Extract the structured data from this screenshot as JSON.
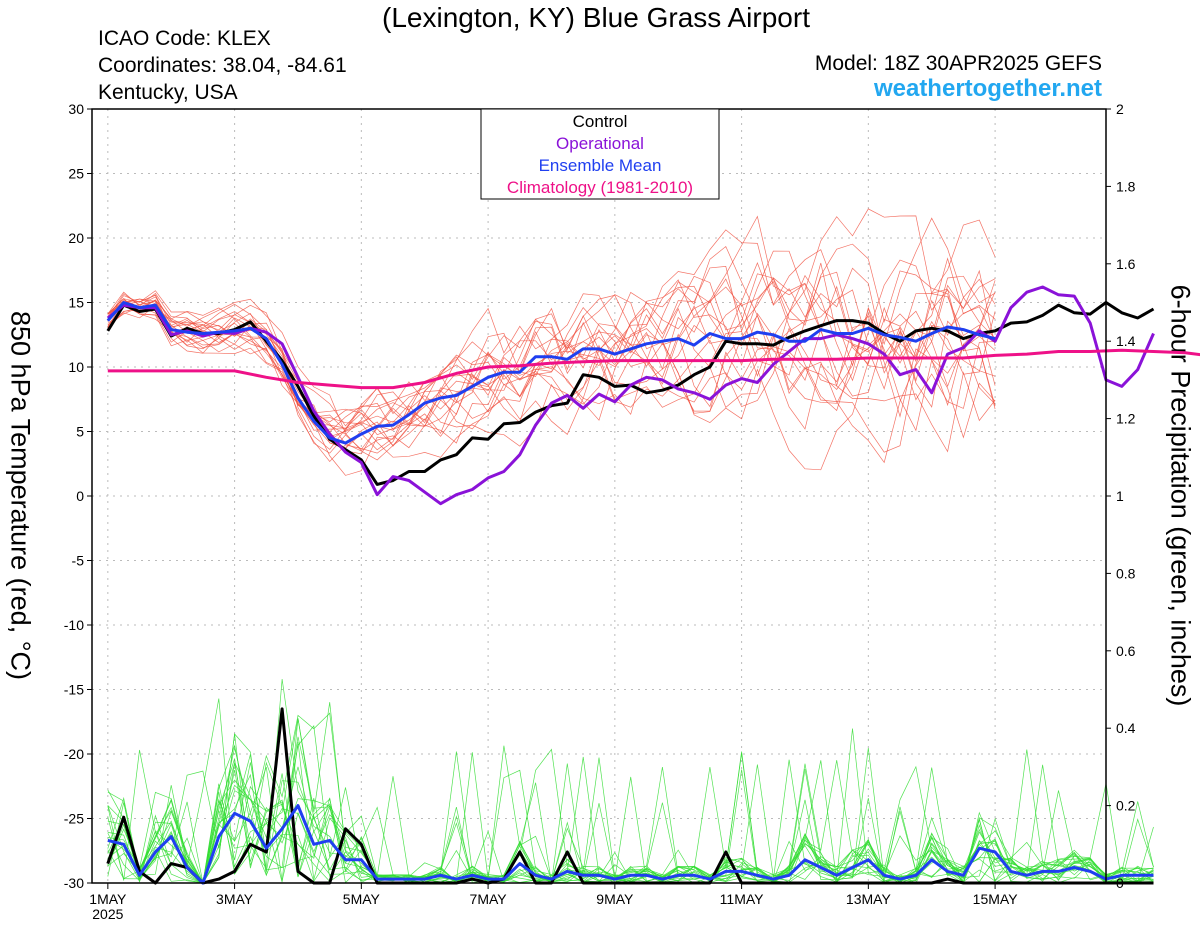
{
  "header": {
    "title": "(Lexington, KY) Blue Grass Airport",
    "icao": "ICAO Code: KLEX",
    "coords": "Coordinates: 38.04, -84.61",
    "region": "Kentucky, USA",
    "model": "Model: 18Z 30APR2025 GEFS",
    "site": "weathertogether.net"
  },
  "colors": {
    "control": "#000000",
    "operational": "#8a12d8",
    "mean": "#1f3ff0",
    "climatology": "#ee1188",
    "temp_members": "#f05040",
    "precip_members": "#33dd33"
  },
  "chart_data": {
    "type": "line",
    "ylabel_left": "850 hPa Temperature (red, °C)",
    "ylabel_right": "6-hour Precipitation (green, inches)",
    "x_ticks": [
      "1MAY",
      "3MAY",
      "5MAY",
      "7MAY",
      "9MAY",
      "11MAY",
      "13MAY",
      "15MAY"
    ],
    "x_year": "2025",
    "x_range_days": [
      0.75,
      16.75
    ],
    "ylim_left": [
      -30,
      30
    ],
    "yticks_left": [
      30,
      25,
      20,
      15,
      10,
      5,
      0,
      -5,
      -10,
      -15,
      -20,
      -25,
      -30
    ],
    "ylim_right": [
      0,
      2
    ],
    "yticks_right": [
      "2",
      "1.8",
      "1.6",
      "1.4",
      "1.2",
      "1",
      "0.8",
      "0.6",
      "0.4",
      "0.2",
      "0"
    ],
    "grid": true,
    "legend_position": "top-center",
    "legend": [
      "Control",
      "Operational",
      "Ensemble Mean",
      "Climatology (1981-2010)"
    ],
    "time_step_days": 0.25,
    "series": [
      {
        "name": "Control",
        "kind": "temperature",
        "values": [
          12.8,
          14.8,
          14.3,
          14.5,
          12.4,
          13.0,
          12.6,
          12.6,
          12.9,
          13.5,
          12.0,
          10.5,
          8.5,
          6.2,
          4.4,
          3.6,
          2.8,
          0.9,
          1.2,
          1.9,
          1.9,
          2.8,
          3.2,
          4.5,
          4.4,
          5.6,
          5.7,
          6.5,
          7.0,
          7.2,
          9.4,
          9.2,
          8.5,
          8.6,
          8.0,
          8.2,
          8.6,
          9.4,
          10.0,
          12.0,
          11.8,
          11.8,
          11.7,
          12.3,
          12.8,
          13.2,
          13.6,
          13.6,
          13.4,
          12.6,
          12.0,
          12.8,
          13.0,
          12.8,
          12.2,
          12.6,
          12.8,
          13.4,
          13.5,
          14.0,
          14.8,
          14.2,
          14.1,
          15.0,
          14.2,
          13.8,
          14.5
        ]
      },
      {
        "name": "Operational",
        "kind": "temperature",
        "values": [
          13.8,
          14.8,
          14.6,
          14.6,
          12.5,
          12.8,
          12.4,
          12.7,
          12.6,
          13.0,
          12.7,
          11.8,
          9.2,
          6.6,
          4.8,
          3.4,
          2.6,
          0.1,
          1.5,
          1.2,
          0.3,
          -0.6,
          0.1,
          0.5,
          1.4,
          1.9,
          3.2,
          5.5,
          7.2,
          7.8,
          6.8,
          7.9,
          7.3,
          8.6,
          9.2,
          9.0,
          8.3,
          8.0,
          7.5,
          8.6,
          9.1,
          8.8,
          10.2,
          11.2,
          12.2,
          12.2,
          12.5,
          12.2,
          11.8,
          11.0,
          9.4,
          9.8,
          8.0,
          11.0,
          11.5,
          12.8,
          12.0,
          14.6,
          15.8,
          16.2,
          15.6,
          15.5,
          13.4,
          9.0,
          8.5,
          9.8,
          12.6
        ]
      },
      {
        "name": "Ensemble Mean",
        "kind": "temperature",
        "values": [
          13.6,
          15.0,
          14.6,
          14.8,
          12.9,
          12.7,
          12.6,
          12.7,
          12.8,
          13.0,
          12.2,
          10.2,
          7.6,
          5.8,
          4.5,
          4.1,
          4.8,
          5.4,
          5.5,
          6.3,
          7.2,
          7.6,
          7.8,
          8.5,
          9.2,
          9.6,
          9.6,
          10.8,
          10.8,
          10.6,
          11.4,
          11.4,
          11.0,
          11.4,
          11.8,
          12.0,
          12.2,
          11.7,
          12.6,
          12.2,
          12.2,
          12.7,
          12.5,
          12.0,
          12.0,
          12.9,
          12.6,
          12.6,
          13.0,
          12.5,
          12.3,
          12.0,
          12.6,
          13.1,
          12.9,
          12.5,
          12.2
        ]
      },
      {
        "name": "Climatology (1981-2010)",
        "kind": "temperature",
        "values": [
          9.7,
          9.7,
          9.7,
          9.7,
          9.7,
          9.2,
          8.8,
          8.6,
          8.4,
          8.4,
          8.8,
          9.5,
          10.0,
          10.1,
          10.3,
          10.4,
          10.5,
          10.5,
          10.5,
          10.5,
          10.5,
          10.6,
          10.6,
          10.6,
          10.7,
          10.7,
          10.7,
          10.7,
          10.9,
          11.0,
          11.2,
          11.2,
          11.3,
          11.2,
          11.1,
          10.8
        ]
      },
      {
        "name": "Control",
        "kind": "precipitation",
        "values": [
          0.05,
          0.17,
          0.03,
          0.0,
          0.05,
          0.04,
          0.0,
          0.01,
          0.03,
          0.1,
          0.08,
          0.45,
          0.03,
          0.0,
          0.0,
          0.14,
          0.1,
          0.0,
          0.0,
          0.0,
          0.0,
          0.0,
          0.0,
          0.01,
          0.0,
          0.01,
          0.08,
          0.0,
          0.0,
          0.08,
          0.0,
          0.0,
          0.0,
          0.0,
          0.0,
          0.0,
          0.0,
          0.0,
          0.0,
          0.08,
          0.0,
          0.0,
          0.0,
          0.0,
          0.0,
          0.0,
          0.0,
          0.0,
          0.0,
          0.0,
          0.0,
          0.0,
          0.0,
          0.01,
          0.0,
          0.0,
          0.0,
          0.0,
          0.0,
          0.0,
          0.0,
          0.0,
          0.0,
          0.0,
          0.0,
          0.0,
          0.0
        ]
      },
      {
        "name": "Ensemble Mean",
        "kind": "precipitation",
        "values": [
          0.11,
          0.1,
          0.02,
          0.08,
          0.12,
          0.04,
          0.0,
          0.12,
          0.18,
          0.16,
          0.09,
          0.14,
          0.2,
          0.1,
          0.11,
          0.06,
          0.06,
          0.01,
          0.01,
          0.01,
          0.01,
          0.02,
          0.01,
          0.02,
          0.01,
          0.01,
          0.05,
          0.02,
          0.01,
          0.03,
          0.02,
          0.02,
          0.01,
          0.02,
          0.02,
          0.01,
          0.02,
          0.02,
          0.01,
          0.03,
          0.03,
          0.02,
          0.01,
          0.02,
          0.06,
          0.04,
          0.02,
          0.04,
          0.06,
          0.02,
          0.01,
          0.02,
          0.06,
          0.03,
          0.02,
          0.09,
          0.08,
          0.03,
          0.02,
          0.03,
          0.03,
          0.04,
          0.03,
          0.01,
          0.02,
          0.02,
          0.02
        ]
      }
    ]
  }
}
